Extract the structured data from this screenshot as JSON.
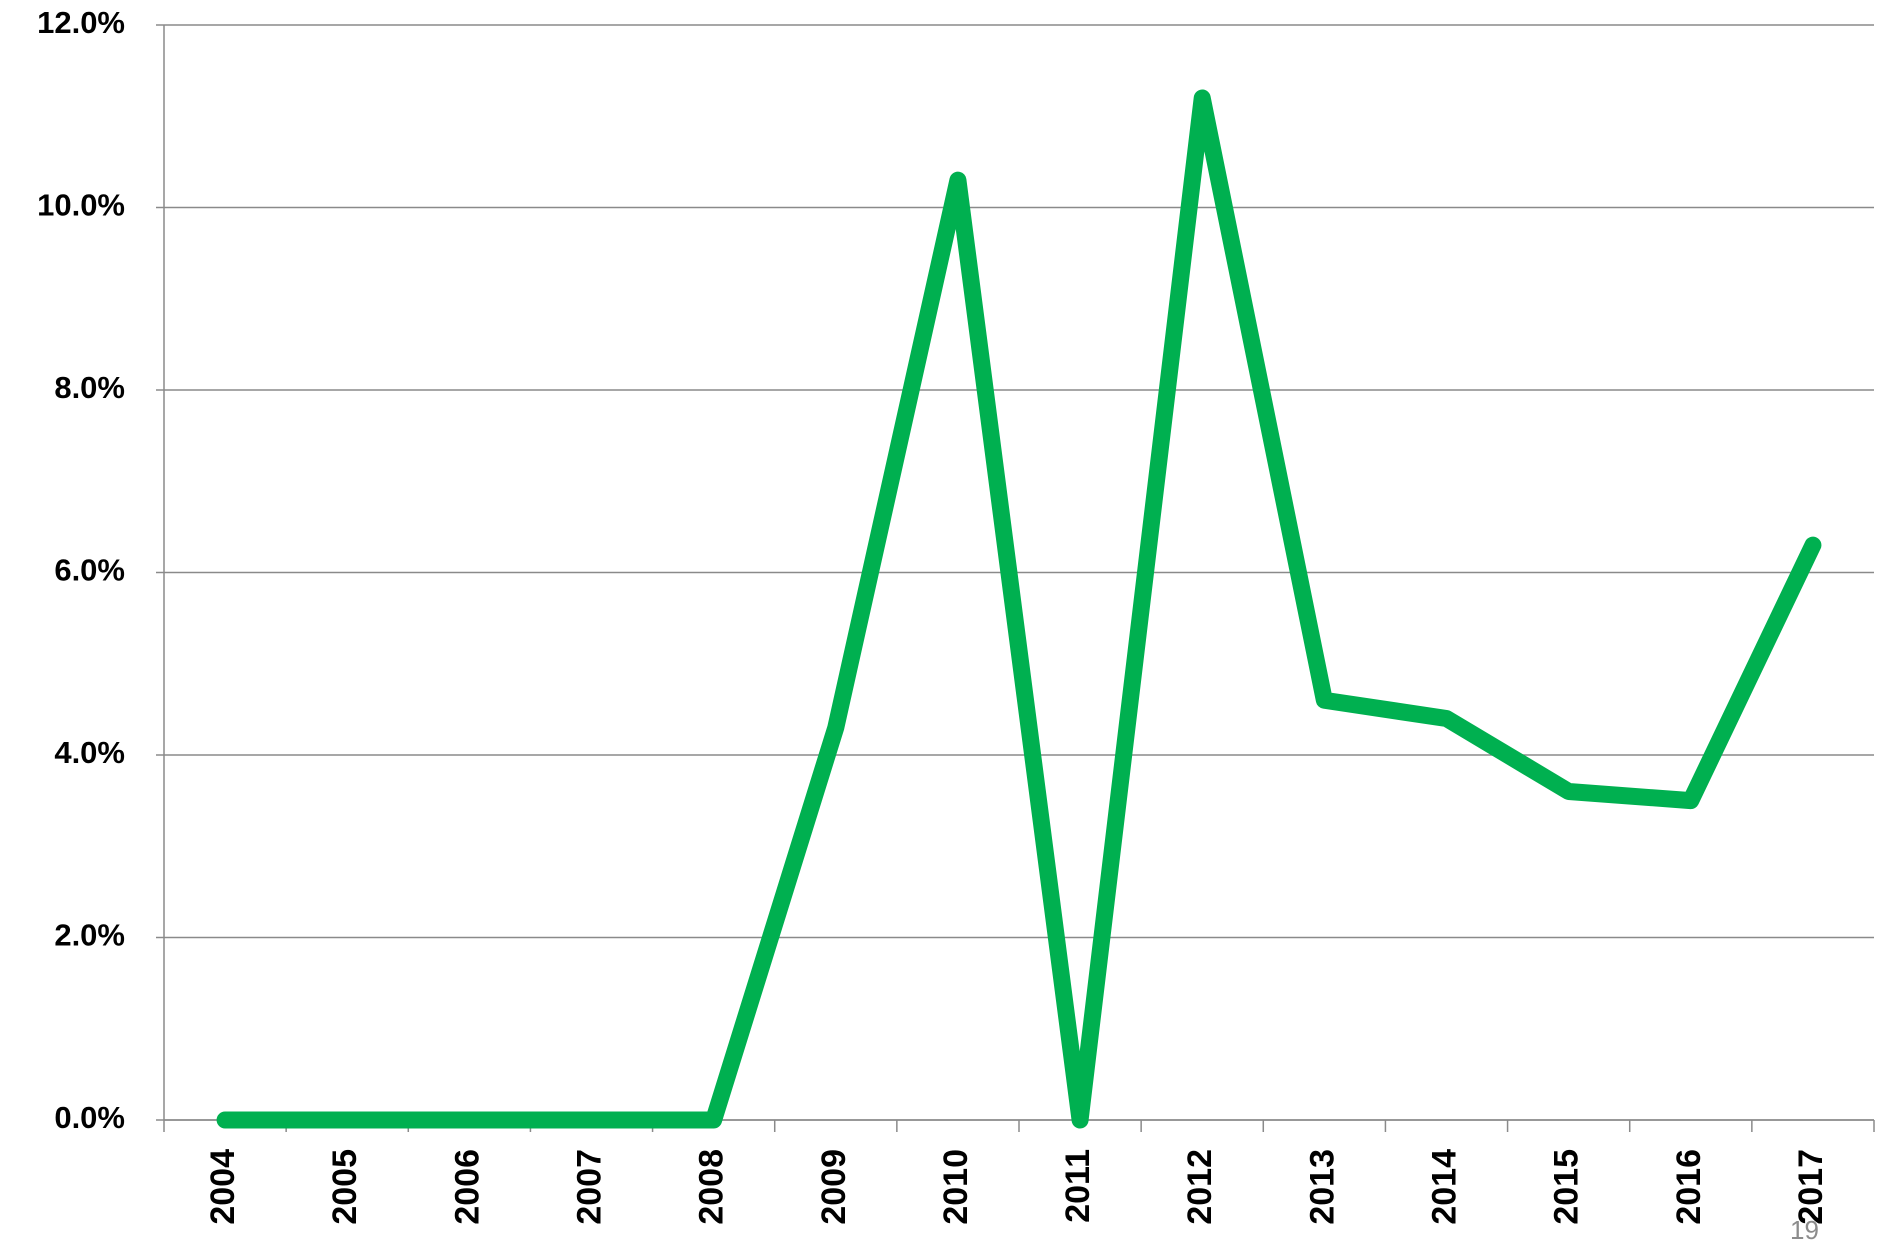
{
  "chart_data": {
    "type": "line",
    "categories": [
      "2004",
      "2005",
      "2006",
      "2007",
      "2008",
      "2009",
      "2010",
      "2011",
      "2012",
      "2013",
      "2014",
      "2015",
      "2016",
      "2017"
    ],
    "series": [
      {
        "color": "#00b050",
        "values": [
          0,
          0,
          0,
          0,
          0,
          4.3,
          10.3,
          0,
          11.2,
          4.6,
          4.4,
          3.6,
          3.5,
          6.3
        ]
      }
    ],
    "ylim": [
      0,
      12
    ],
    "yticks": [
      {
        "value": 0,
        "label": "0.0%"
      },
      {
        "value": 2,
        "label": "2.0%"
      },
      {
        "value": 4,
        "label": "4.0%"
      },
      {
        "value": 6,
        "label": "6.0%"
      },
      {
        "value": 8,
        "label": "8.0%"
      },
      {
        "value": 10,
        "label": "10.0%"
      },
      {
        "value": 12,
        "label": "12.0%"
      }
    ],
    "grid": true,
    "page_number": "19"
  }
}
